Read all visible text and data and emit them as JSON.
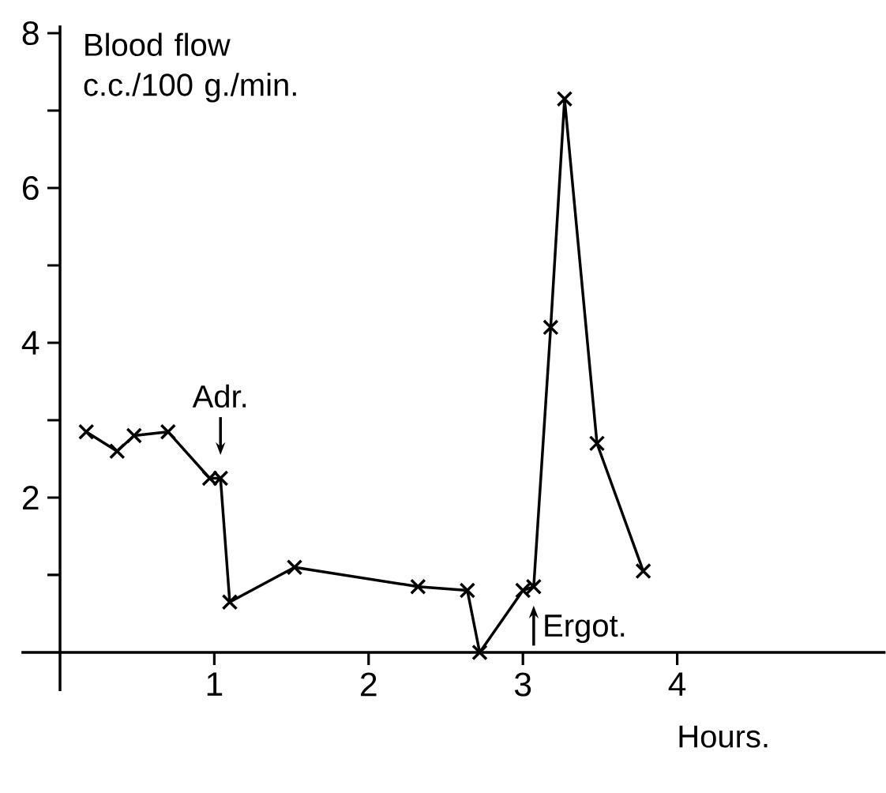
{
  "chart_data": {
    "type": "line",
    "xlabel": "Hours.",
    "ylabel": "Blood flow c.c./100 g./min.",
    "x": [
      0.17,
      0.37,
      0.48,
      0.7,
      0.97,
      1.04,
      1.1,
      1.52,
      2.32,
      2.64,
      2.72,
      3.0,
      3.07,
      3.18,
      3.27,
      3.48,
      3.78
    ],
    "values": [
      2.85,
      2.6,
      2.8,
      2.85,
      2.25,
      2.25,
      0.65,
      1.1,
      0.85,
      0.8,
      0,
      0.8,
      0.85,
      4.2,
      7.15,
      2.7,
      1.05
    ],
    "color": "#000000",
    "marker": "cross",
    "line_style": "solid",
    "xlim": [
      -0.25,
      5.35
    ],
    "ylim": [
      -0.5,
      8.1
    ],
    "xticks": [
      {
        "value": 0,
        "label": null
      },
      1,
      2,
      3,
      4
    ],
    "yticks": [
      {
        "value": 0,
        "label": null
      },
      {
        "value": 1,
        "label": null
      },
      2,
      {
        "value": 3,
        "label": null
      },
      4,
      {
        "value": 5,
        "label": null
      },
      6,
      {
        "value": 7,
        "label": null
      },
      8
    ],
    "annotations": [
      {
        "text": "Adr.",
        "x": 1.04,
        "y": 2.25
      },
      {
        "text": "Ergot.",
        "x": 3.07,
        "y": 0.85
      }
    ]
  }
}
